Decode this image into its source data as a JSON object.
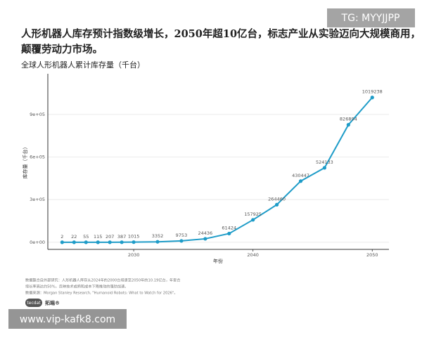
{
  "chart_data": {
    "type": "line",
    "title": [
      "人形机器人库存预计指数级增长，2050年超10亿台，标志产业从实验迈向大规模商用，",
      "颠覆劳动力市场。"
    ],
    "subtitle": "全球人形机器人累计库存量（千台）",
    "x_label": "年份",
    "y_label": "库存量（千台）",
    "x": [
      2024,
      2025,
      2026,
      2027,
      2028,
      2029,
      2030,
      2032,
      2034,
      2036,
      2038,
      2040,
      2042,
      2044,
      2046,
      2048,
      2050
    ],
    "series": [
      {
        "name": "库存量",
        "color": "#1e9cc8",
        "values": [
          2,
          22,
          55,
          115,
          207,
          387,
          1015,
          3352,
          9753,
          24436,
          61424,
          157925,
          264460,
          430447,
          524133,
          826894,
          1019238
        ]
      }
    ],
    "xlim": [
      2022.8,
      2051.4
    ],
    "xticks": [
      2030,
      2040,
      2050
    ],
    "ylim": [
      -50000,
      1186000
    ],
    "yticks": [
      {
        "value": 0,
        "label": "0e+00"
      },
      {
        "value": 300000,
        "label": "3e+05"
      },
      {
        "value": 600000,
        "label": "6e+05"
      },
      {
        "value": 900000,
        "label": "9e+05"
      }
    ],
    "grid": true,
    "note": [
      "数据整合自外部研究：人形机器人库存从2024年的2000台增速至2050年的10.19亿台，年复合",
      "增长率高达约50%，反映技术成熟和成本下降推动的强劲加速。",
      "数据来源：Morgan Stanley Research, \"Humanoid Robots: What to Watch for 2026\"。"
    ]
  },
  "logo": [
    "tecdat",
    "拓端®"
  ],
  "watermarks": [
    "TG: MYYJJPP",
    "www.vip-kafk8.com"
  ]
}
